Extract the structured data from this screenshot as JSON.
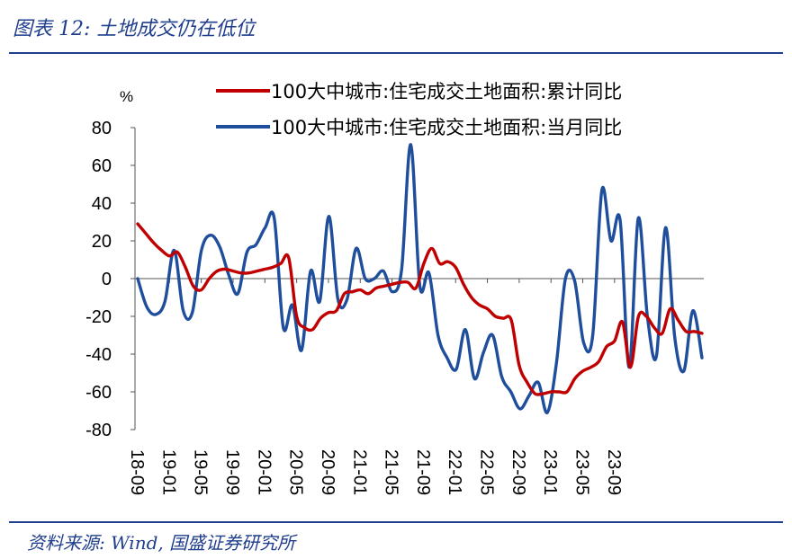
{
  "header": {
    "title": "图表 12:  土地成交仍在低位"
  },
  "footer": {
    "source": "资料来源:  Wind,  国盛证券研究所"
  },
  "chart_data": {
    "type": "line",
    "unit_label": "%",
    "ylim": [
      -80,
      80
    ],
    "yticks": [
      "80",
      "60",
      "40",
      "20",
      "0",
      "-20",
      "-40",
      "-60",
      "-80"
    ],
    "x_tick_labels": [
      "18-09",
      "19-01",
      "19-05",
      "19-09",
      "20-01",
      "20-05",
      "20-09",
      "21-01",
      "21-05",
      "21-09",
      "22-01",
      "22-05",
      "22-09",
      "23-01",
      "23-05",
      "23-09"
    ],
    "legend_position": "top-right",
    "series": [
      {
        "name": "100大中城市:住宅成交土地面积:累计同比",
        "color": "#c00000",
        "values": [
          [
            0,
            29
          ],
          [
            1,
            24
          ],
          [
            2,
            19
          ],
          [
            3,
            15
          ],
          [
            4,
            12
          ],
          [
            5,
            14
          ],
          [
            6,
            6
          ],
          [
            7,
            -4
          ],
          [
            8,
            -6
          ],
          [
            9,
            0
          ],
          [
            10,
            4
          ],
          [
            11,
            5
          ],
          [
            12,
            4
          ],
          [
            13,
            3
          ],
          [
            14,
            3
          ],
          [
            15,
            4
          ],
          [
            16,
            5
          ],
          [
            17,
            6
          ],
          [
            18,
            8
          ],
          [
            19,
            11
          ],
          [
            20,
            -20
          ],
          [
            21,
            -26
          ],
          [
            22,
            -27
          ],
          [
            23,
            -21
          ],
          [
            24,
            -18
          ],
          [
            25,
            -17
          ],
          [
            26,
            -8
          ],
          [
            27,
            -7
          ],
          [
            28,
            -6
          ],
          [
            29,
            -8
          ],
          [
            30,
            -5
          ],
          [
            31,
            -4
          ],
          [
            32,
            -3
          ],
          [
            33,
            -2
          ],
          [
            34,
            -2
          ],
          [
            35,
            -5
          ],
          [
            36,
            8
          ],
          [
            37,
            16
          ],
          [
            38,
            8
          ],
          [
            39,
            9
          ],
          [
            40,
            6
          ],
          [
            41,
            -3
          ],
          [
            42,
            -10
          ],
          [
            43,
            -14
          ],
          [
            44,
            -16
          ],
          [
            45,
            -20
          ],
          [
            46,
            -21
          ],
          [
            47,
            -22
          ],
          [
            48,
            -46
          ],
          [
            49,
            -55
          ],
          [
            50,
            -61
          ],
          [
            51,
            -61
          ],
          [
            52,
            -60
          ],
          [
            53,
            -60
          ],
          [
            54,
            -60
          ],
          [
            55,
            -53
          ],
          [
            56,
            -49
          ],
          [
            57,
            -47
          ],
          [
            58,
            -44
          ],
          [
            59,
            -36
          ],
          [
            60,
            -33
          ],
          [
            61,
            -23
          ],
          [
            62,
            -47
          ],
          [
            63,
            -20
          ],
          [
            64,
            -20
          ],
          [
            65,
            -26
          ],
          [
            66,
            -29
          ],
          [
            67,
            -16
          ],
          [
            68,
            -22
          ],
          [
            69,
            -28
          ],
          [
            70,
            -28
          ],
          [
            71,
            -29
          ]
        ]
      },
      {
        "name": "100大中城市:住宅成交土地面积:当月同比",
        "color": "#1f4e9c",
        "values": [
          [
            0,
            0
          ],
          [
            1,
            -15
          ],
          [
            2,
            -19
          ],
          [
            3,
            -12
          ],
          [
            4,
            15
          ],
          [
            5,
            -17
          ],
          [
            6,
            -18
          ],
          [
            7,
            15
          ],
          [
            8,
            23
          ],
          [
            9,
            17
          ],
          [
            10,
            2
          ],
          [
            11,
            -8
          ],
          [
            12,
            14
          ],
          [
            13,
            18
          ],
          [
            14,
            27
          ],
          [
            15,
            32
          ],
          [
            16,
            -26
          ],
          [
            17,
            -14
          ],
          [
            18,
            -38
          ],
          [
            19,
            4
          ],
          [
            20,
            -12
          ],
          [
            21,
            33
          ],
          [
            22,
            -11
          ],
          [
            23,
            -11
          ],
          [
            24,
            16
          ],
          [
            25,
            0
          ],
          [
            26,
            0
          ],
          [
            27,
            4
          ],
          [
            28,
            -7
          ],
          [
            29,
            5
          ],
          [
            30,
            71
          ],
          [
            31,
            -4
          ],
          [
            32,
            3
          ],
          [
            33,
            -30
          ],
          [
            34,
            -42
          ],
          [
            35,
            -48
          ],
          [
            36,
            -27
          ],
          [
            37,
            -53
          ],
          [
            38,
            -39
          ],
          [
            39,
            -30
          ],
          [
            40,
            -52
          ],
          [
            41,
            -60
          ],
          [
            42,
            -69
          ],
          [
            43,
            -62
          ],
          [
            44,
            -55
          ],
          [
            45,
            -71
          ],
          [
            46,
            -45
          ],
          [
            47,
            0
          ],
          [
            48,
            -1
          ],
          [
            49,
            -34
          ],
          [
            50,
            -30
          ],
          [
            51,
            47
          ],
          [
            52,
            20
          ],
          [
            53,
            31
          ],
          [
            54,
            -47
          ],
          [
            55,
            32
          ],
          [
            56,
            -20
          ],
          [
            57,
            -41
          ],
          [
            58,
            27
          ],
          [
            59,
            -31
          ],
          [
            60,
            -49
          ],
          [
            61,
            -17
          ],
          [
            62,
            -42
          ]
        ]
      }
    ]
  }
}
